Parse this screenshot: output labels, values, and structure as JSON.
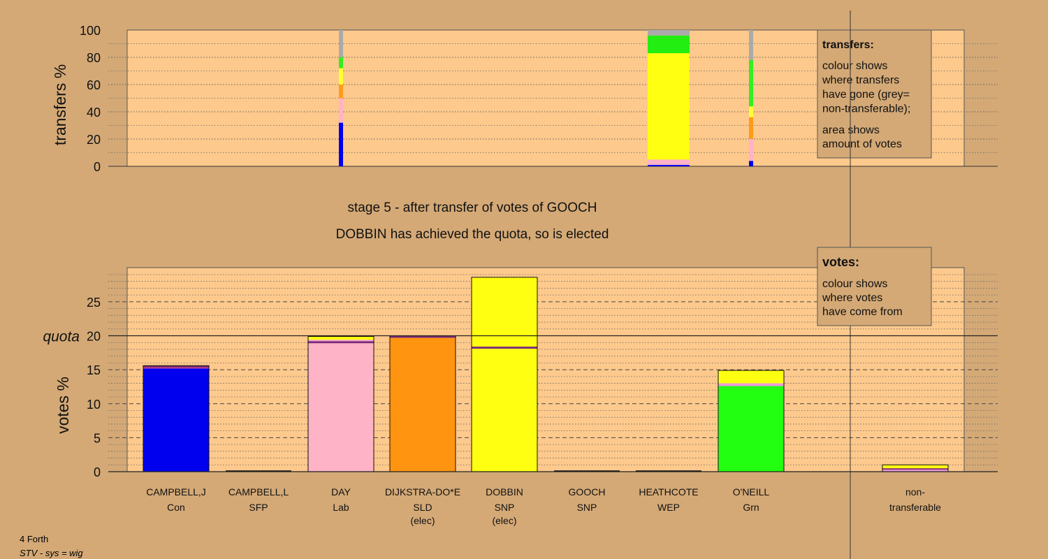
{
  "chart_data": [
    {
      "type": "bar",
      "stacked": true,
      "ylabel": "transfers %",
      "ylim": [
        0,
        100
      ],
      "yticks": [
        0,
        20,
        40,
        60,
        80,
        100
      ],
      "grid": true,
      "transfers": [
        {
          "column": 2,
          "width": "thin",
          "segments": [
            {
              "color": "#0000ee",
              "value": 32
            },
            {
              "color": "#ffffff00",
              "value": 0
            },
            {
              "color": "#ffb3c6",
              "value": 18
            },
            {
              "color": "#ff9a1a",
              "value": 10
            },
            {
              "color": "#ffff33",
              "value": 12
            },
            {
              "color": "#33ee22",
              "value": 8
            },
            {
              "color": "#aaaaaa",
              "value": 20
            }
          ]
        },
        {
          "column": 6,
          "width": "wide",
          "segments": [
            {
              "color": "#0000ee",
              "value": 1
            },
            {
              "color": "#ffb3c6",
              "value": 4
            },
            {
              "color": "#ffff11",
              "value": 78
            },
            {
              "color": "#22ee11",
              "value": 13
            },
            {
              "color": "#aaaaaa",
              "value": 4
            }
          ]
        },
        {
          "column": 7,
          "width": "thin",
          "segments": [
            {
              "color": "#0000ee",
              "value": 4
            },
            {
              "color": "#ffb3c6",
              "value": 16
            },
            {
              "color": "#ff9a1a",
              "value": 16
            },
            {
              "color": "#ffff33",
              "value": 8
            },
            {
              "color": "#33ee22",
              "value": 34
            },
            {
              "color": "#aaaaaa",
              "value": 22
            }
          ]
        }
      ],
      "legend": {
        "title": "transfers:",
        "lines1": [
          "colour shows",
          "where transfers",
          "have gone (grey=",
          "non-transferable);"
        ],
        "lines2": [
          "area shows",
          "amount of votes"
        ]
      }
    },
    {
      "type": "bar",
      "stacked": true,
      "ylabel": "votes %",
      "ylim": [
        0,
        30
      ],
      "yticks": [
        0,
        5,
        10,
        15,
        20,
        25
      ],
      "quota": {
        "value": 20,
        "label": "quota"
      },
      "grid": true,
      "candidates": [
        {
          "name": "CAMPBELL,J",
          "party": "Con",
          "status": "",
          "segments": [
            {
              "color": "#0000ee",
              "value": 15.2
            },
            {
              "color": "#ff3aa0",
              "value": 0.1
            },
            {
              "color": "#7a2a7a",
              "value": 0.3
            }
          ]
        },
        {
          "name": "CAMPBELL,L",
          "party": "SFP",
          "status": "",
          "segments": []
        },
        {
          "name": "DAY",
          "party": "Lab",
          "status": "",
          "segments": [
            {
              "color": "#ffb3c6",
              "value": 18.9
            },
            {
              "color": "#7a2a7a",
              "value": 0.3
            },
            {
              "color": "#ee99dd",
              "value": 0.2
            },
            {
              "color": "#ffff11",
              "value": 0.5
            }
          ]
        },
        {
          "name": "DIJKSTRA-DO*E",
          "party": "SLD",
          "status": "(elec)",
          "segments": [
            {
              "color": "#ff9410",
              "value": 19.7
            },
            {
              "color": "#7a2a7a",
              "value": 0.3
            }
          ]
        },
        {
          "name": "DOBBIN",
          "party": "SNP",
          "status": "(elec)",
          "segments": [
            {
              "color": "#ffff11",
              "value": 18.1
            },
            {
              "color": "#7a2a7a",
              "value": 0.3
            },
            {
              "color": "#ffff11",
              "value": 10.2
            }
          ]
        },
        {
          "name": "GOOCH",
          "party": "SNP",
          "status": "",
          "segments": []
        },
        {
          "name": "HEATHCOTE",
          "party": "WEP",
          "status": "",
          "segments": []
        },
        {
          "name": "O'NEILL",
          "party": "Grn",
          "status": "",
          "segments": [
            {
              "color": "#22ff11",
              "value": 12.6
            },
            {
              "color": "#ee99dd",
              "value": 0.4
            },
            {
              "color": "#ffff11",
              "value": 1.9
            }
          ]
        },
        {
          "name": "non-",
          "party": "transferable",
          "status": "",
          "segments": [
            {
              "color": "#ee99dd",
              "value": 0.3
            },
            {
              "color": "#7a2a7a",
              "value": 0.2
            },
            {
              "color": "#ffff11",
              "value": 0.5
            }
          ]
        }
      ],
      "legend": {
        "title": "votes:",
        "lines": [
          "colour shows",
          "where votes",
          "have come from"
        ]
      }
    }
  ],
  "stage_text": "stage 5 - after transfer of votes of GOOCH",
  "elected_text": "DOBBIN has achieved the quota, so is elected",
  "footer": {
    "area": "4 Forth",
    "system": "STV - sys = wig"
  },
  "colors": {
    "background": "#d4a976",
    "plot_area": "#fdc98c",
    "legend_box": "#d4a976"
  }
}
